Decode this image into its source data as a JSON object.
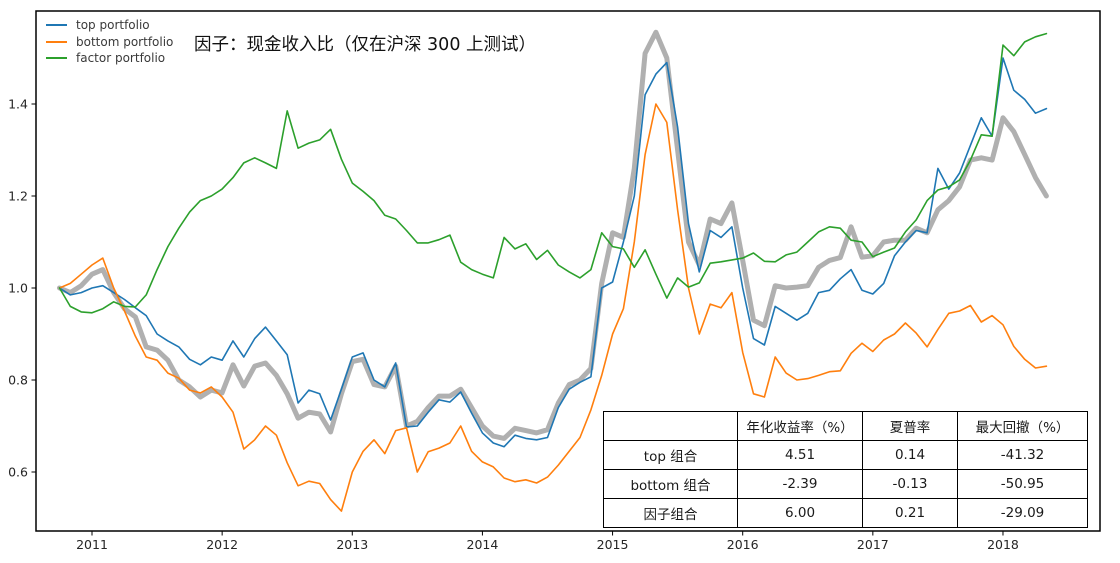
{
  "figure": {
    "title": "因子：现金收入比（仅在沪深 300 上测试）",
    "background_color": "#ffffff",
    "plot_border_color": "#000000"
  },
  "legend": {
    "position": "upper left",
    "items": [
      {
        "label": "top portfolio",
        "color": "#1f77b4"
      },
      {
        "label": "bottom portfolio",
        "color": "#ff7f0e"
      },
      {
        "label": "factor portfolio",
        "color": "#2ca02c"
      }
    ]
  },
  "axes": {
    "x_tick_labels": [
      "2011",
      "2012",
      "2013",
      "2014",
      "2015",
      "2016",
      "2017",
      "2018"
    ],
    "y_tick_labels": [
      "0.6",
      "0.8",
      "1.0",
      "1.2",
      "1.4"
    ],
    "tick_color": "#262626"
  },
  "stats_table": {
    "headers": [
      "",
      "年化收益率（%）",
      "夏普率",
      "最大回撤（%）"
    ],
    "rows": [
      {
        "label": "top 组合",
        "values": [
          "4.51",
          "0.14",
          "-41.32"
        ]
      },
      {
        "label": "bottom 组合",
        "values": [
          "-2.39",
          "-0.13",
          "-50.95"
        ]
      },
      {
        "label": "因子组合",
        "values": [
          "6.00",
          "0.21",
          "-29.09"
        ]
      }
    ]
  },
  "chart_data": {
    "type": "line",
    "title": "因子：现金收入比（仅在沪深 300 上测试）",
    "xlabel": "",
    "ylabel": "",
    "grid": false,
    "legend_position": "upper left",
    "x_ticks": [
      2011,
      2012,
      2013,
      2014,
      2015,
      2016,
      2017,
      2018
    ],
    "y_ticks": [
      0.6,
      0.8,
      1.0,
      1.2,
      1.4
    ],
    "xlim": [
      2010.57,
      2018.75
    ],
    "ylim": [
      0.47,
      1.6
    ],
    "x": [
      "2010-10",
      "2010-11",
      "2010-12",
      "2011-01",
      "2011-02",
      "2011-03",
      "2011-04",
      "2011-05",
      "2011-06",
      "2011-07",
      "2011-08",
      "2011-09",
      "2011-10",
      "2011-11",
      "2011-12",
      "2012-01",
      "2012-02",
      "2012-03",
      "2012-04",
      "2012-05",
      "2012-06",
      "2012-07",
      "2012-08",
      "2012-09",
      "2012-10",
      "2012-11",
      "2012-12",
      "2013-01",
      "2013-02",
      "2013-03",
      "2013-04",
      "2013-05",
      "2013-06",
      "2013-07",
      "2013-08",
      "2013-09",
      "2013-10",
      "2013-11",
      "2013-12",
      "2014-01",
      "2014-02",
      "2014-03",
      "2014-04",
      "2014-05",
      "2014-06",
      "2014-07",
      "2014-08",
      "2014-09",
      "2014-10",
      "2014-11",
      "2014-12",
      "2015-01",
      "2015-02",
      "2015-03",
      "2015-04",
      "2015-05",
      "2015-06",
      "2015-07",
      "2015-08",
      "2015-09",
      "2015-10",
      "2015-11",
      "2015-12",
      "2016-01",
      "2016-02",
      "2016-03",
      "2016-04",
      "2016-05",
      "2016-06",
      "2016-07",
      "2016-08",
      "2016-09",
      "2016-10",
      "2016-11",
      "2016-12",
      "2017-01",
      "2017-02",
      "2017-03",
      "2017-04",
      "2017-05",
      "2017-06",
      "2017-07",
      "2017-08",
      "2017-09",
      "2017-10",
      "2017-11",
      "2017-12",
      "2018-01",
      "2018-02",
      "2018-03",
      "2018-04",
      "2018-05"
    ],
    "series": [
      {
        "name": "benchmark (unlabeled gray line)",
        "color": "#b0b0b0",
        "line_width": 5,
        "values": [
          1.0,
          0.99,
          1.005,
          1.03,
          1.04,
          0.99,
          0.955,
          0.937,
          0.872,
          0.865,
          0.843,
          0.8,
          0.785,
          0.763,
          0.778,
          0.772,
          0.833,
          0.787,
          0.83,
          0.837,
          0.81,
          0.77,
          0.717,
          0.73,
          0.726,
          0.687,
          0.77,
          0.84,
          0.845,
          0.79,
          0.785,
          0.83,
          0.7,
          0.71,
          0.74,
          0.765,
          0.765,
          0.78,
          0.74,
          0.7,
          0.678,
          0.673,
          0.695,
          0.69,
          0.685,
          0.692,
          0.75,
          0.79,
          0.8,
          0.825,
          1.01,
          1.12,
          1.11,
          1.26,
          1.51,
          1.556,
          1.5,
          1.3,
          1.1,
          1.05,
          1.15,
          1.14,
          1.185,
          1.06,
          0.93,
          0.918,
          1.005,
          1.0,
          1.002,
          1.005,
          1.045,
          1.06,
          1.066,
          1.133,
          1.067,
          1.07,
          1.1,
          1.104,
          1.104,
          1.13,
          1.12,
          1.17,
          1.19,
          1.22,
          1.278,
          1.283,
          1.278,
          1.37,
          1.34,
          1.29,
          1.24,
          1.2
        ]
      },
      {
        "name": "top portfolio",
        "color": "#1f77b4",
        "line_width": 1.6,
        "values": [
          1.0,
          0.985,
          0.99,
          1.0,
          1.005,
          0.99,
          0.975,
          0.957,
          0.94,
          0.9,
          0.885,
          0.872,
          0.845,
          0.833,
          0.85,
          0.843,
          0.885,
          0.85,
          0.89,
          0.915,
          0.885,
          0.855,
          0.75,
          0.778,
          0.77,
          0.713,
          0.78,
          0.85,
          0.859,
          0.8,
          0.785,
          0.837,
          0.698,
          0.7,
          0.73,
          0.757,
          0.752,
          0.774,
          0.728,
          0.685,
          0.663,
          0.655,
          0.68,
          0.673,
          0.67,
          0.675,
          0.74,
          0.78,
          0.795,
          0.807,
          1.0,
          1.013,
          1.1,
          1.2,
          1.42,
          1.465,
          1.49,
          1.35,
          1.14,
          1.035,
          1.125,
          1.11,
          1.133,
          1.0,
          0.89,
          0.876,
          0.96,
          0.945,
          0.93,
          0.945,
          0.99,
          0.995,
          1.02,
          1.04,
          0.995,
          0.987,
          1.01,
          1.07,
          1.1,
          1.125,
          1.12,
          1.26,
          1.215,
          1.25,
          1.31,
          1.37,
          1.33,
          1.5,
          1.43,
          1.41,
          1.38,
          1.39
        ]
      },
      {
        "name": "bottom portfolio",
        "color": "#ff7f0e",
        "line_width": 1.6,
        "values": [
          1.0,
          1.01,
          1.03,
          1.05,
          1.065,
          1.0,
          0.95,
          0.895,
          0.85,
          0.843,
          0.815,
          0.804,
          0.778,
          0.772,
          0.785,
          0.763,
          0.73,
          0.65,
          0.67,
          0.7,
          0.68,
          0.62,
          0.57,
          0.58,
          0.575,
          0.54,
          0.515,
          0.6,
          0.645,
          0.67,
          0.64,
          0.69,
          0.696,
          0.6,
          0.644,
          0.652,
          0.663,
          0.7,
          0.645,
          0.622,
          0.611,
          0.587,
          0.579,
          0.583,
          0.576,
          0.589,
          0.615,
          0.645,
          0.675,
          0.735,
          0.81,
          0.9,
          0.955,
          1.1,
          1.29,
          1.4,
          1.36,
          1.17,
          1.0,
          0.9,
          0.965,
          0.957,
          0.99,
          0.86,
          0.77,
          0.763,
          0.85,
          0.815,
          0.8,
          0.803,
          0.81,
          0.818,
          0.82,
          0.858,
          0.88,
          0.862,
          0.887,
          0.9,
          0.924,
          0.902,
          0.872,
          0.91,
          0.945,
          0.95,
          0.962,
          0.926,
          0.94,
          0.92,
          0.873,
          0.845,
          0.826,
          0.83
        ]
      },
      {
        "name": "factor portfolio",
        "color": "#2ca02c",
        "line_width": 1.6,
        "values": [
          1.0,
          0.96,
          0.948,
          0.946,
          0.955,
          0.97,
          0.96,
          0.959,
          0.985,
          1.04,
          1.09,
          1.13,
          1.165,
          1.19,
          1.2,
          1.215,
          1.24,
          1.272,
          1.283,
          1.272,
          1.26,
          1.385,
          1.304,
          1.315,
          1.322,
          1.345,
          1.28,
          1.228,
          1.21,
          1.19,
          1.158,
          1.15,
          1.125,
          1.098,
          1.098,
          1.105,
          1.115,
          1.056,
          1.04,
          1.03,
          1.022,
          1.11,
          1.085,
          1.096,
          1.062,
          1.082,
          1.05,
          1.035,
          1.022,
          1.04,
          1.12,
          1.09,
          1.085,
          1.045,
          1.083,
          1.03,
          0.978,
          1.022,
          1.002,
          1.011,
          1.054,
          1.057,
          1.061,
          1.065,
          1.076,
          1.058,
          1.057,
          1.072,
          1.078,
          1.1,
          1.122,
          1.133,
          1.13,
          1.104,
          1.1,
          1.068,
          1.078,
          1.087,
          1.122,
          1.148,
          1.19,
          1.213,
          1.22,
          1.235,
          1.278,
          1.333,
          1.33,
          1.528,
          1.505,
          1.535,
          1.546,
          1.553
        ]
      }
    ]
  }
}
